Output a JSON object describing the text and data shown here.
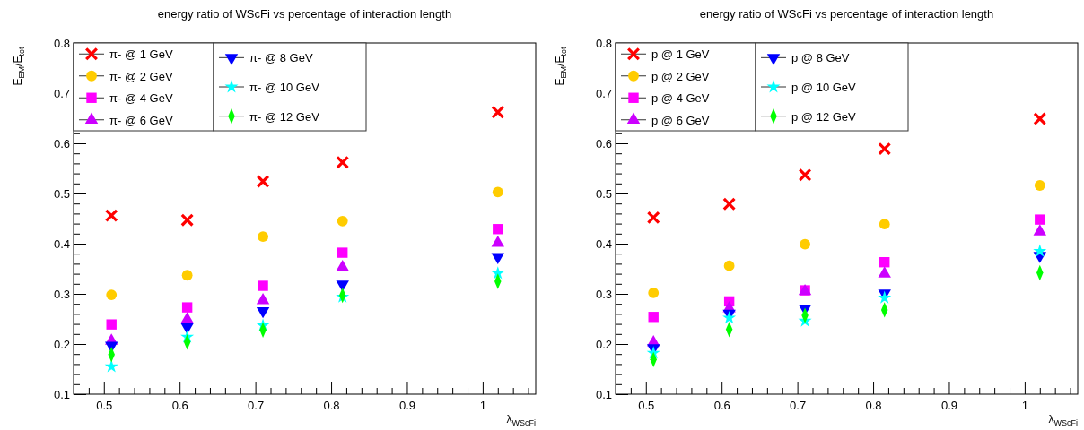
{
  "chart_data": [
    {
      "type": "scatter",
      "title": "energy ratio of WScFi vs percentage of interaction length",
      "xlabel": "λ$_{WScFi}$",
      "ylabel": "E$_{EM}$/E$_{tot}$",
      "x": [
        0.51,
        0.61,
        0.71,
        0.815,
        1.02
      ],
      "series": [
        {
          "name": "π- @ 1 GeV",
          "color": "#ff0000",
          "marker": "cross",
          "values": [
            0.456,
            0.447,
            0.524,
            0.562,
            0.662
          ]
        },
        {
          "name": "π- @ 2 GeV",
          "color": "#ffcc00",
          "marker": "circle",
          "values": [
            0.298,
            0.337,
            0.414,
            0.445,
            0.503
          ]
        },
        {
          "name": "π- @ 4 GeV",
          "color": "#ff00ff",
          "marker": "square",
          "values": [
            0.239,
            0.273,
            0.316,
            0.382,
            0.429
          ]
        },
        {
          "name": "π- @ 6 GeV",
          "color": "#cc00ff",
          "marker": "triangle",
          "values": [
            0.206,
            0.249,
            0.287,
            0.353,
            0.401
          ]
        },
        {
          "name": "π- @ 8 GeV",
          "color": "#0000ff",
          "marker": "triangle-down",
          "values": [
            0.197,
            0.234,
            0.266,
            0.319,
            0.374
          ]
        },
        {
          "name": "π- @ 10 GeV",
          "color": "#00ffff",
          "marker": "star",
          "values": [
            0.155,
            0.214,
            0.237,
            0.294,
            0.341
          ]
        },
        {
          "name": "π- @ 12 GeV",
          "color": "#00ff00",
          "marker": "diamond",
          "values": [
            0.179,
            0.204,
            0.228,
            0.297,
            0.325
          ]
        }
      ],
      "xlim": [
        0.46,
        1.07
      ],
      "ylim": [
        0.1,
        0.8
      ],
      "xticks": [
        {
          "value": 0.46,
          "label": null
        },
        {
          "value": 0.48,
          "label": null
        },
        0.5,
        {
          "value": 0.52,
          "label": null
        },
        {
          "value": 0.54,
          "label": null
        },
        {
          "value": 0.56,
          "label": null
        },
        {
          "value": 0.58,
          "label": null
        },
        0.6,
        {
          "value": 0.62,
          "label": null
        },
        {
          "value": 0.64,
          "label": null
        },
        {
          "value": 0.66,
          "label": null
        },
        {
          "value": 0.68,
          "label": null
        },
        0.7,
        {
          "value": 0.72,
          "label": null
        },
        {
          "value": 0.74,
          "label": null
        },
        {
          "value": 0.76,
          "label": null
        },
        {
          "value": 0.78,
          "label": null
        },
        0.8,
        {
          "value": 0.82,
          "label": null
        },
        {
          "value": 0.84,
          "label": null
        },
        {
          "value": 0.86,
          "label": null
        },
        {
          "value": 0.88,
          "label": null
        },
        0.9,
        {
          "value": 0.92,
          "label": null
        },
        {
          "value": 0.94,
          "label": null
        },
        {
          "value": 0.96,
          "label": null
        },
        {
          "value": 0.98,
          "label": null
        },
        1,
        {
          "value": 1.02,
          "label": null
        },
        {
          "value": 1.04,
          "label": null
        },
        {
          "value": 1.06,
          "label": null
        }
      ],
      "yticks": [
        0.1,
        {
          "value": 0.12,
          "label": null
        },
        {
          "value": 0.14,
          "label": null
        },
        {
          "value": 0.16,
          "label": null
        },
        {
          "value": 0.18,
          "label": null
        },
        0.2,
        {
          "value": 0.22,
          "label": null
        },
        {
          "value": 0.24,
          "label": null
        },
        {
          "value": 0.26,
          "label": null
        },
        {
          "value": 0.28,
          "label": null
        },
        0.3,
        {
          "value": 0.32,
          "label": null
        },
        {
          "value": 0.34,
          "label": null
        },
        {
          "value": 0.36,
          "label": null
        },
        {
          "value": 0.38,
          "label": null
        },
        0.4,
        {
          "value": 0.42,
          "label": null
        },
        {
          "value": 0.44,
          "label": null
        },
        {
          "value": 0.46,
          "label": null
        },
        {
          "value": 0.48,
          "label": null
        },
        0.5,
        {
          "value": 0.52,
          "label": null
        },
        {
          "value": 0.54,
          "label": null
        },
        {
          "value": 0.56,
          "label": null
        },
        {
          "value": 0.58,
          "label": null
        },
        0.6,
        {
          "value": 0.62,
          "label": null
        },
        {
          "value": 0.64,
          "label": null
        },
        {
          "value": 0.66,
          "label": null
        },
        {
          "value": 0.68,
          "label": null
        },
        0.7,
        {
          "value": 0.72,
          "label": null
        },
        {
          "value": 0.74,
          "label": null
        },
        {
          "value": 0.76,
          "label": null
        },
        {
          "value": 0.78,
          "label": null
        },
        0.8
      ],
      "grid": false,
      "legend": "top left"
    },
    {
      "type": "scatter",
      "title": "energy ratio of WScFi vs percentage of interaction length",
      "xlabel": "λ$_{WScFi}$",
      "ylabel": "E$_{EM}$/E$_{tot}$",
      "x": [
        0.51,
        0.61,
        0.71,
        0.815,
        1.02
      ],
      "series": [
        {
          "name": "p @ 1 GeV",
          "color": "#ff0000",
          "marker": "cross",
          "values": [
            0.452,
            0.479,
            0.537,
            0.589,
            0.649
          ]
        },
        {
          "name": "p @ 2 GeV",
          "color": "#ffcc00",
          "marker": "circle",
          "values": [
            0.302,
            0.356,
            0.399,
            0.439,
            0.516
          ]
        },
        {
          "name": "p @ 4 GeV",
          "color": "#ff00ff",
          "marker": "square",
          "values": [
            0.254,
            0.285,
            0.307,
            0.363,
            0.448
          ]
        },
        {
          "name": "p @ 6 GeV",
          "color": "#cc00ff",
          "marker": "triangle",
          "values": [
            0.203,
            0.271,
            0.305,
            0.34,
            0.424
          ]
        },
        {
          "name": "p @ 8 GeV",
          "color": "#0000ff",
          "marker": "triangle-down",
          "values": [
            0.192,
            0.261,
            0.271,
            0.301,
            0.376
          ]
        },
        {
          "name": "p @ 10 GeV",
          "color": "#00ffff",
          "marker": "star",
          "values": [
            0.182,
            0.252,
            0.246,
            0.292,
            0.385
          ]
        },
        {
          "name": "p @ 12 GeV",
          "color": "#00ff00",
          "marker": "diamond",
          "values": [
            0.169,
            0.229,
            0.257,
            0.268,
            0.342
          ]
        }
      ],
      "xlim": [
        0.46,
        1.07
      ],
      "ylim": [
        0.1,
        0.8
      ],
      "xticks": [
        {
          "value": 0.46,
          "label": null
        },
        {
          "value": 0.48,
          "label": null
        },
        0.5,
        {
          "value": 0.52,
          "label": null
        },
        {
          "value": 0.54,
          "label": null
        },
        {
          "value": 0.56,
          "label": null
        },
        {
          "value": 0.58,
          "label": null
        },
        0.6,
        {
          "value": 0.62,
          "label": null
        },
        {
          "value": 0.64,
          "label": null
        },
        {
          "value": 0.66,
          "label": null
        },
        {
          "value": 0.68,
          "label": null
        },
        0.7,
        {
          "value": 0.72,
          "label": null
        },
        {
          "value": 0.74,
          "label": null
        },
        {
          "value": 0.76,
          "label": null
        },
        {
          "value": 0.78,
          "label": null
        },
        0.8,
        {
          "value": 0.82,
          "label": null
        },
        {
          "value": 0.84,
          "label": null
        },
        {
          "value": 0.86,
          "label": null
        },
        {
          "value": 0.88,
          "label": null
        },
        0.9,
        {
          "value": 0.92,
          "label": null
        },
        {
          "value": 0.94,
          "label": null
        },
        {
          "value": 0.96,
          "label": null
        },
        {
          "value": 0.98,
          "label": null
        },
        1,
        {
          "value": 1.02,
          "label": null
        },
        {
          "value": 1.04,
          "label": null
        },
        {
          "value": 1.06,
          "label": null
        }
      ],
      "yticks": [
        0.1,
        {
          "value": 0.12,
          "label": null
        },
        {
          "value": 0.14,
          "label": null
        },
        {
          "value": 0.16,
          "label": null
        },
        {
          "value": 0.18,
          "label": null
        },
        0.2,
        {
          "value": 0.22,
          "label": null
        },
        {
          "value": 0.24,
          "label": null
        },
        {
          "value": 0.26,
          "label": null
        },
        {
          "value": 0.28,
          "label": null
        },
        0.3,
        {
          "value": 0.32,
          "label": null
        },
        {
          "value": 0.34,
          "label": null
        },
        {
          "value": 0.36,
          "label": null
        },
        {
          "value": 0.38,
          "label": null
        },
        0.4,
        {
          "value": 0.42,
          "label": null
        },
        {
          "value": 0.44,
          "label": null
        },
        {
          "value": 0.46,
          "label": null
        },
        {
          "value": 0.48,
          "label": null
        },
        0.5,
        {
          "value": 0.52,
          "label": null
        },
        {
          "value": 0.54,
          "label": null
        },
        {
          "value": 0.56,
          "label": null
        },
        {
          "value": 0.58,
          "label": null
        },
        0.6,
        {
          "value": 0.62,
          "label": null
        },
        {
          "value": 0.64,
          "label": null
        },
        {
          "value": 0.66,
          "label": null
        },
        {
          "value": 0.68,
          "label": null
        },
        0.7,
        {
          "value": 0.72,
          "label": null
        },
        {
          "value": 0.74,
          "label": null
        },
        {
          "value": 0.76,
          "label": null
        },
        {
          "value": 0.78,
          "label": null
        },
        0.8
      ],
      "grid": false,
      "legend": "top left"
    }
  ]
}
